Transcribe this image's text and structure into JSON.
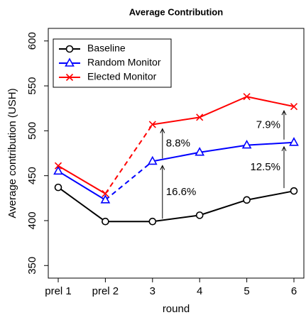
{
  "chart_data": {
    "type": "line",
    "title": "Average Contribution",
    "x_label": "round",
    "y_label": "Average contribution (USH)",
    "categories": [
      "prel 1",
      "prel 2",
      "3",
      "4",
      "5",
      "6"
    ],
    "series": [
      {
        "name": "Baseline",
        "color": "#000000",
        "marker": "circle",
        "values": [
          437,
          399,
          399,
          406,
          423,
          433
        ]
      },
      {
        "name": "Random Monitor",
        "color": "#0000ff",
        "marker": "triangle",
        "values": [
          455,
          423,
          466,
          476,
          484,
          487
        ]
      },
      {
        "name": "Elected Monitor",
        "color": "#ff0000",
        "marker": "x",
        "values": [
          461,
          430,
          507,
          515,
          538,
          527
        ]
      }
    ],
    "annotations": [
      "16.6%",
      "8.8%",
      "12.5%",
      "7.9%"
    ],
    "ylim": [
      336,
      614
    ],
    "yticks": [
      350,
      400,
      450,
      500,
      550,
      600
    ],
    "legend": "upper left"
  }
}
